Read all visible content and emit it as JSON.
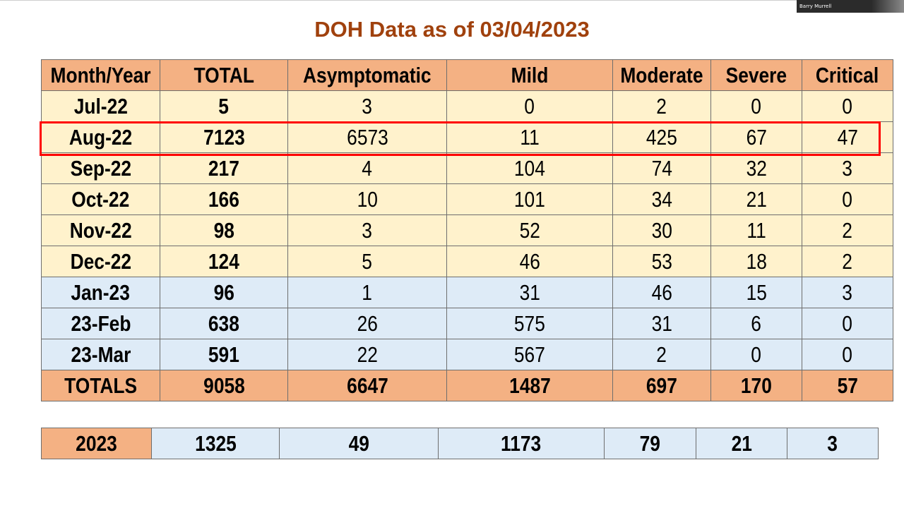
{
  "participant": {
    "name": "Barry Murrell"
  },
  "title": "DOH Data as of 03/04/2023",
  "headers": [
    "Month/Year",
    "TOTAL",
    "Asymptomatic",
    "Mild",
    "Moderate",
    "Severe",
    "Critical"
  ],
  "rows": [
    {
      "month": "Jul-22",
      "total": "5",
      "asymptomatic": "3",
      "mild": "0",
      "moderate": "2",
      "severe": "0",
      "critical": "0"
    },
    {
      "month": "Aug-22",
      "total": "7123",
      "asymptomatic": "6573",
      "mild": "11",
      "moderate": "425",
      "severe": "67",
      "critical": "47"
    },
    {
      "month": "Sep-22",
      "total": "217",
      "asymptomatic": "4",
      "mild": "104",
      "moderate": "74",
      "severe": "32",
      "critical": "3"
    },
    {
      "month": "Oct-22",
      "total": "166",
      "asymptomatic": "10",
      "mild": "101",
      "moderate": "34",
      "severe": "21",
      "critical": "0"
    },
    {
      "month": "Nov-22",
      "total": "98",
      "asymptomatic": "3",
      "mild": "52",
      "moderate": "30",
      "severe": "11",
      "critical": "2"
    },
    {
      "month": "Dec-22",
      "total": "124",
      "asymptomatic": "5",
      "mild": "46",
      "moderate": "53",
      "severe": "18",
      "critical": "2"
    },
    {
      "month": "Jan-23",
      "total": "96",
      "asymptomatic": "1",
      "mild": "31",
      "moderate": "46",
      "severe": "15",
      "critical": "3"
    },
    {
      "month": "23-Feb",
      "total": "638",
      "asymptomatic": "26",
      "mild": "575",
      "moderate": "31",
      "severe": "6",
      "critical": "0"
    },
    {
      "month": "23-Mar",
      "total": "591",
      "asymptomatic": "22",
      "mild": "567",
      "moderate": "2",
      "severe": "0",
      "critical": "0"
    }
  ],
  "totals": {
    "month": "TOTALS",
    "total": "9058",
    "asymptomatic": "6647",
    "mild": "1487",
    "moderate": "697",
    "severe": "170",
    "critical": "57"
  },
  "summary": {
    "month": "2023",
    "total": "1325",
    "asymptomatic": "49",
    "mild": "1173",
    "moderate": "79",
    "severe": "21",
    "critical": "3"
  },
  "colors": {
    "title": "#a0410d",
    "header_fill": "#f4b183",
    "rows_2022_fill": "#fff2cc",
    "rows_2023_fill": "#deebf7",
    "highlight_border": "#ff0000"
  },
  "highlighted_row": "Aug-22"
}
